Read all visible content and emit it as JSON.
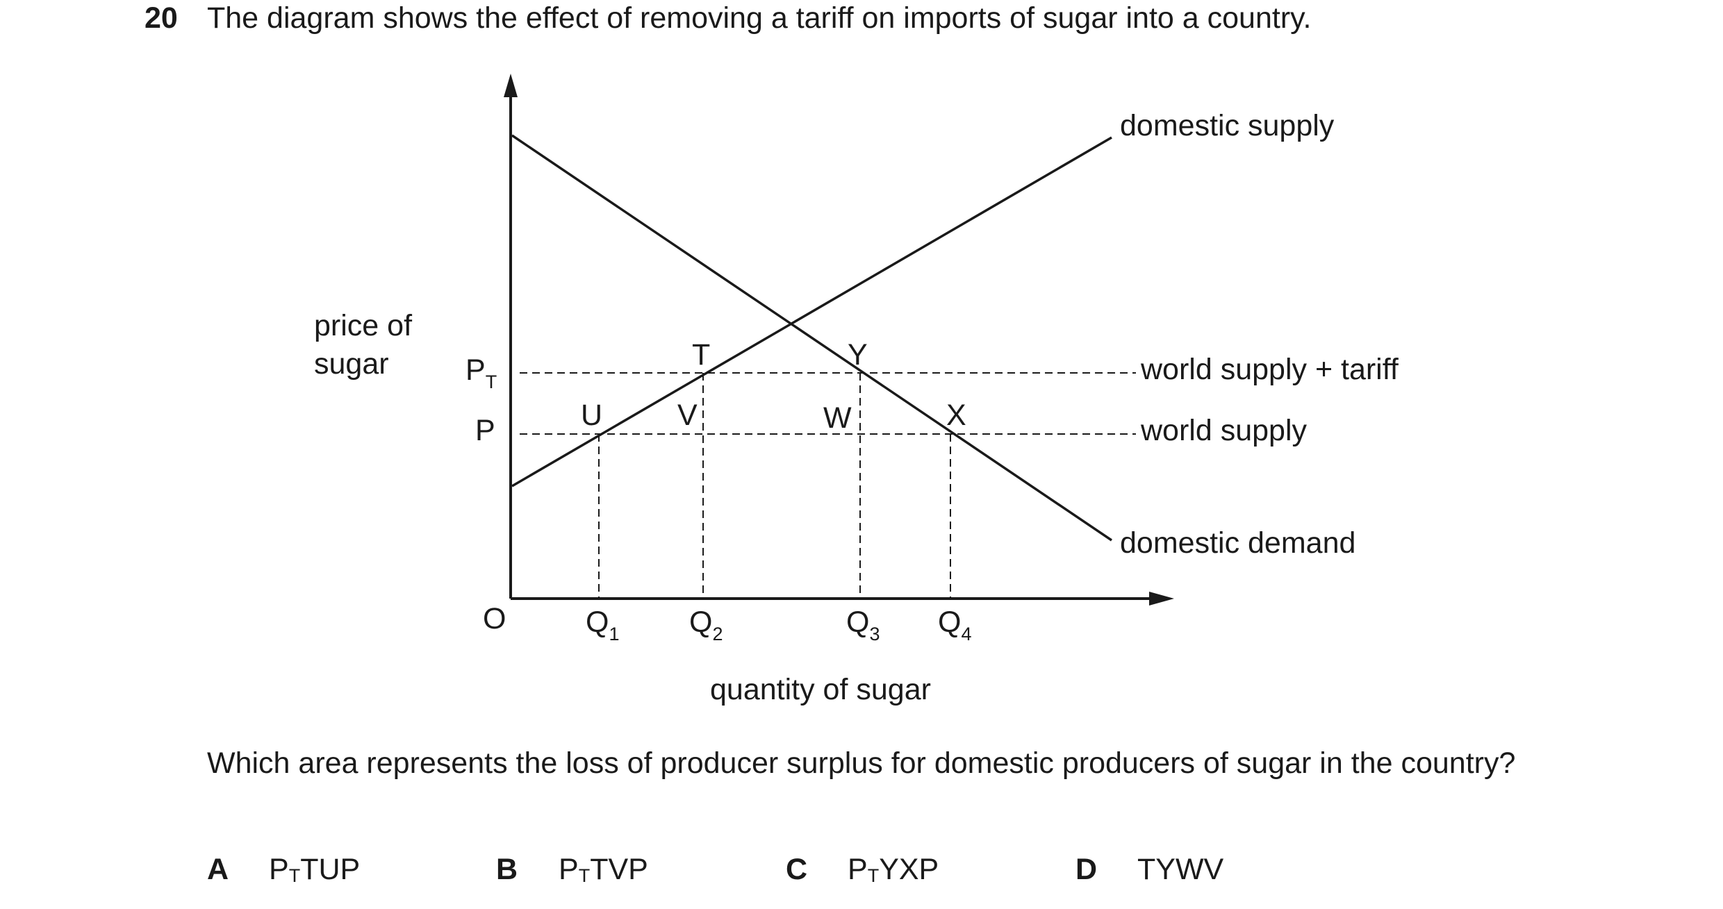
{
  "question": {
    "number": "20",
    "stem": "The diagram shows the effect of removing a tariff on imports of sugar into a country.",
    "prompt": "Which area represents the loss of producer surplus for domestic producers of sugar in the country?"
  },
  "diagram": {
    "y_axis_label_line1": "price of",
    "y_axis_label_line2": "sugar",
    "x_axis_label": "quantity of sugar",
    "origin": "O",
    "price_labels": {
      "pt_main": "P",
      "pt_sub": "T",
      "p": "P"
    },
    "quantity_labels": [
      {
        "main": "Q",
        "sub": "1"
      },
      {
        "main": "Q",
        "sub": "2"
      },
      {
        "main": "Q",
        "sub": "3"
      },
      {
        "main": "Q",
        "sub": "4"
      }
    ],
    "points": {
      "T": "T",
      "Y": "Y",
      "U": "U",
      "V": "V",
      "W": "W",
      "X": "X"
    },
    "curve_labels": {
      "domestic_supply": "domestic supply",
      "domestic_demand": "domestic demand",
      "world_supply_tariff": "world supply + tariff",
      "world_supply": "world supply"
    }
  },
  "options": [
    {
      "letter": "A",
      "pre": "P",
      "sub": "T",
      "post": "TUP"
    },
    {
      "letter": "B",
      "pre": "P",
      "sub": "T",
      "post": "TVP"
    },
    {
      "letter": "C",
      "pre": "P",
      "sub": "T",
      "post": "YXP"
    },
    {
      "letter": "D",
      "pre": "",
      "sub": "",
      "post": "TYWV"
    }
  ]
}
